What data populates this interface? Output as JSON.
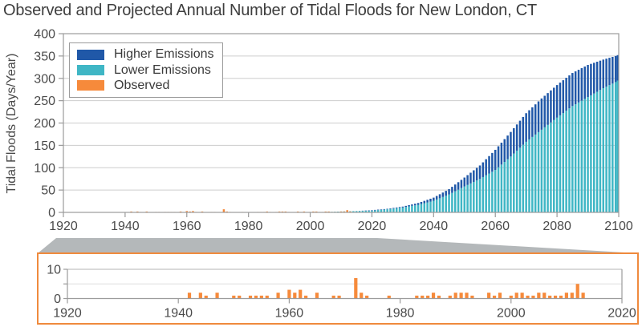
{
  "title": "Observed and Projected Annual Number of Tidal Floods for New London, CT",
  "colors": {
    "higher_emissions": "#2058A8",
    "lower_emissions": "#3FB6C5",
    "observed": "#F68A3B",
    "grid": "#CDCDCD",
    "grid_light": "#DDDDDD",
    "axis": "#9B9B9B",
    "tick_text": "#4A4A4A",
    "title_text": "#3E3E3E",
    "connector_gray": "#B4B8BA",
    "inset_border": "#EF8A3D",
    "background": "#FFFFFF"
  },
  "legend": {
    "items": [
      {
        "label": "Higher Emissions",
        "color": "#2058A8"
      },
      {
        "label": "Lower Emissions",
        "color": "#3FB6C5"
      },
      {
        "label": "Observed",
        "color": "#F68A3B"
      }
    ]
  },
  "chart_data": {
    "type": "bar",
    "title": "Observed and Projected Annual Number of Tidal Floods for New London, CT",
    "ylabel": "Tidal Floods (Days/Year)",
    "units": "days/year",
    "stacked_note": "Projection bars: teal drawn to Lower-Emissions total, dark blue segment extends from Lower-Emissions total up to Higher-Emissions total.",
    "main": {
      "xlim": [
        1920,
        2100
      ],
      "ylim": [
        0,
        400
      ],
      "xticks": [
        1920,
        1940,
        1960,
        1980,
        2000,
        2020,
        2040,
        2060,
        2080,
        2100
      ],
      "yticks": [
        0,
        50,
        100,
        150,
        200,
        250,
        300,
        350,
        400
      ],
      "grid": true,
      "legend_position": "upper-left"
    },
    "series": [
      {
        "name": "Higher Emissions",
        "color": "#2058A8",
        "role": "projection-total",
        "anchors": [
          [
            2006,
            1
          ],
          [
            2010,
            2
          ],
          [
            2015,
            3
          ],
          [
            2020,
            5
          ],
          [
            2025,
            8
          ],
          [
            2030,
            13
          ],
          [
            2035,
            21
          ],
          [
            2040,
            33
          ],
          [
            2045,
            52
          ],
          [
            2050,
            78
          ],
          [
            2055,
            105
          ],
          [
            2060,
            140
          ],
          [
            2065,
            180
          ],
          [
            2070,
            222
          ],
          [
            2075,
            255
          ],
          [
            2080,
            285
          ],
          [
            2085,
            312
          ],
          [
            2090,
            330
          ],
          [
            2095,
            342
          ],
          [
            2100,
            352
          ]
        ]
      },
      {
        "name": "Lower Emissions",
        "color": "#3FB6C5",
        "role": "projection-total",
        "anchors": [
          [
            2006,
            1
          ],
          [
            2010,
            2
          ],
          [
            2015,
            3
          ],
          [
            2020,
            4
          ],
          [
            2025,
            7
          ],
          [
            2030,
            11
          ],
          [
            2035,
            17
          ],
          [
            2040,
            26
          ],
          [
            2045,
            40
          ],
          [
            2050,
            58
          ],
          [
            2055,
            75
          ],
          [
            2060,
            95
          ],
          [
            2065,
            125
          ],
          [
            2070,
            158
          ],
          [
            2075,
            185
          ],
          [
            2080,
            212
          ],
          [
            2085,
            238
          ],
          [
            2090,
            258
          ],
          [
            2095,
            278
          ],
          [
            2100,
            295
          ]
        ]
      },
      {
        "name": "Observed",
        "color": "#F68A3B",
        "role": "observed",
        "data": [
          [
            1942,
            2
          ],
          [
            1944,
            2
          ],
          [
            1945,
            1
          ],
          [
            1947,
            2
          ],
          [
            1950,
            1
          ],
          [
            1951,
            1
          ],
          [
            1953,
            1
          ],
          [
            1954,
            1
          ],
          [
            1955,
            1
          ],
          [
            1956,
            1
          ],
          [
            1958,
            2
          ],
          [
            1960,
            3
          ],
          [
            1961,
            2
          ],
          [
            1962,
            3
          ],
          [
            1963,
            1
          ],
          [
            1965,
            2
          ],
          [
            1968,
            1
          ],
          [
            1969,
            1
          ],
          [
            1972,
            7
          ],
          [
            1973,
            2
          ],
          [
            1974,
            1
          ],
          [
            1978,
            1
          ],
          [
            1983,
            1
          ],
          [
            1984,
            1
          ],
          [
            1985,
            1
          ],
          [
            1986,
            2
          ],
          [
            1987,
            1
          ],
          [
            1989,
            1
          ],
          [
            1990,
            2
          ],
          [
            1991,
            2
          ],
          [
            1992,
            2
          ],
          [
            1993,
            1
          ],
          [
            1996,
            2
          ],
          [
            1997,
            1
          ],
          [
            1998,
            2
          ],
          [
            2000,
            1
          ],
          [
            2001,
            2
          ],
          [
            2002,
            2
          ],
          [
            2003,
            1
          ],
          [
            2004,
            1
          ],
          [
            2005,
            2
          ],
          [
            2006,
            2
          ],
          [
            2007,
            1
          ],
          [
            2008,
            1
          ],
          [
            2009,
            1
          ],
          [
            2010,
            2
          ],
          [
            2011,
            2
          ],
          [
            2012,
            5
          ],
          [
            2013,
            2
          ]
        ]
      }
    ],
    "inset": {
      "description": "Magnified view of observed tidal flood days 1920-2020",
      "xlim": [
        1920,
        2020
      ],
      "ylim": [
        0,
        10
      ],
      "xticks": [
        1920,
        1940,
        1960,
        1980,
        2000,
        2020
      ],
      "ytick_labels": [
        0,
        10
      ],
      "gridlines": [
        5,
        10
      ],
      "series": "Observed"
    }
  }
}
